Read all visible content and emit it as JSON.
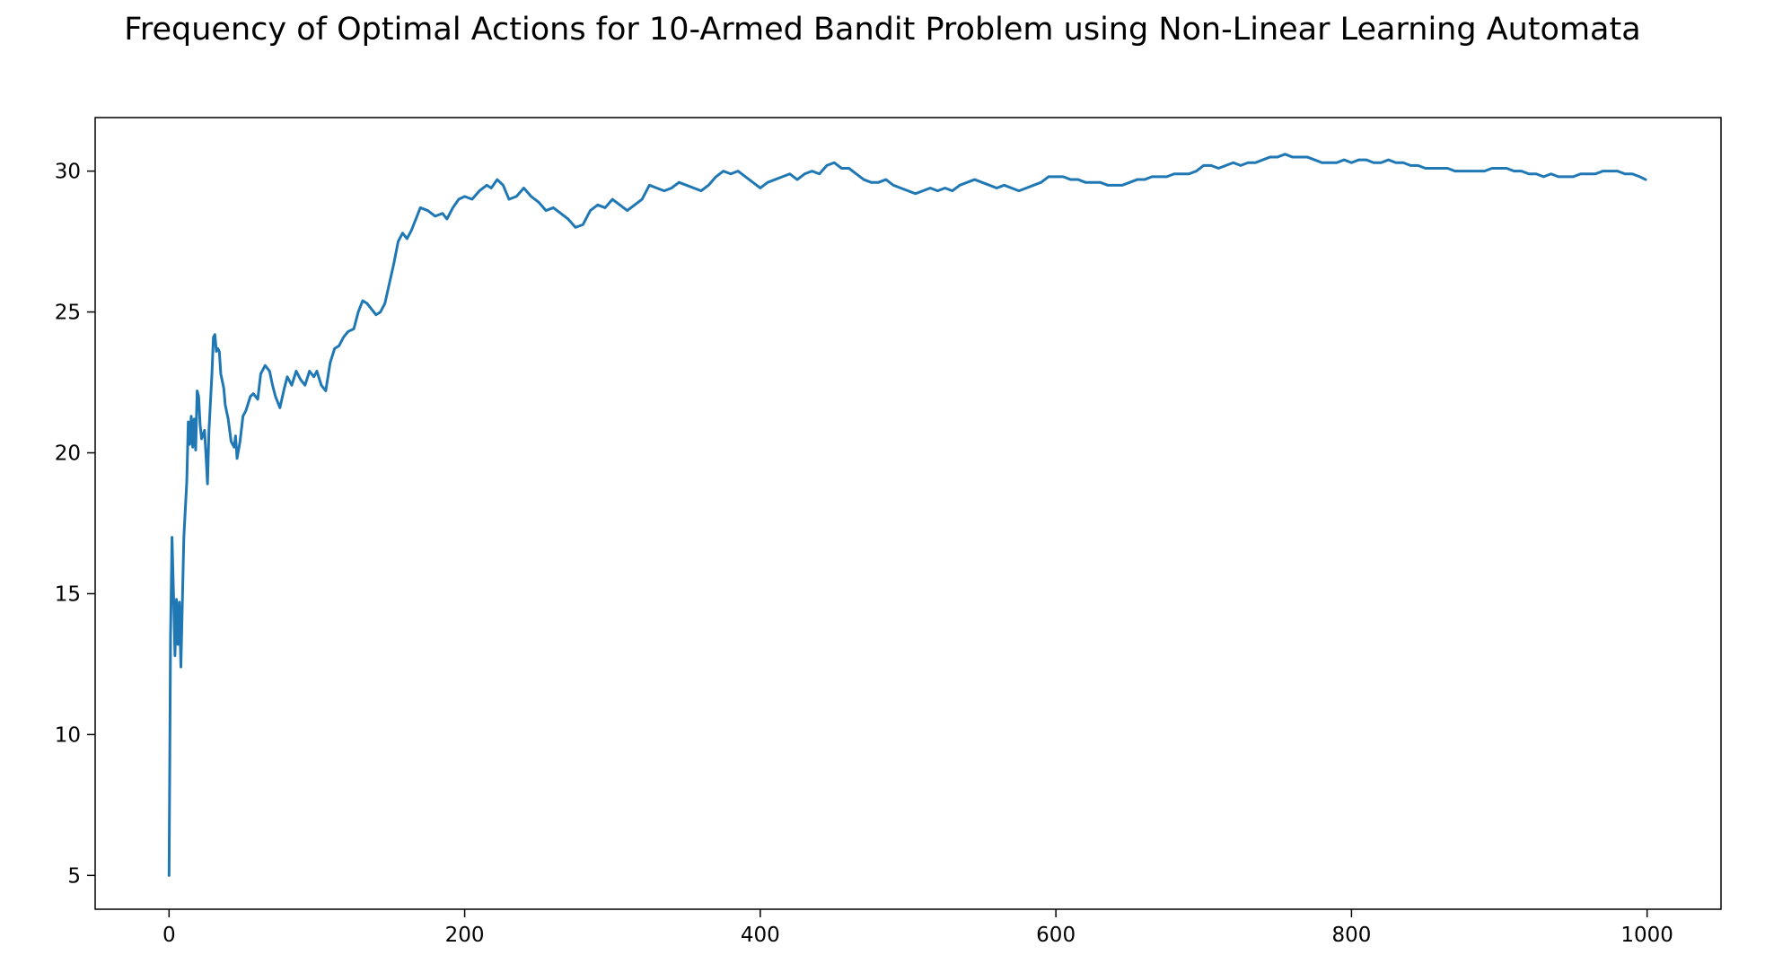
{
  "chart_data": {
    "type": "line",
    "title": "Frequency of Optimal Actions for 10-Armed Bandit Problem using Non-Linear Learning Automata",
    "xlabel": "",
    "ylabel": "",
    "xlim": [
      -50,
      1050
    ],
    "ylim": [
      3.8,
      31.9
    ],
    "xticks": [
      0,
      200,
      400,
      600,
      800,
      1000
    ],
    "yticks": [
      5,
      10,
      15,
      20,
      25,
      30
    ],
    "xtick_labels": [
      "0",
      "200",
      "400",
      "600",
      "800",
      "1000"
    ],
    "ytick_labels": [
      "5",
      "10",
      "15",
      "20",
      "25",
      "30"
    ],
    "grid": false,
    "legend": "none",
    "series": [
      {
        "color": "#1f77b4",
        "points": [
          [
            0,
            5.0
          ],
          [
            1,
            13.5
          ],
          [
            2,
            17.0
          ],
          [
            3,
            15.0
          ],
          [
            4,
            12.8
          ],
          [
            5,
            14.8
          ],
          [
            6,
            13.2
          ],
          [
            7,
            14.7
          ],
          [
            8,
            12.4
          ],
          [
            10,
            17.0
          ],
          [
            12,
            19.0
          ],
          [
            13,
            21.1
          ],
          [
            14,
            20.3
          ],
          [
            15,
            21.3
          ],
          [
            16,
            20.2
          ],
          [
            17,
            21.2
          ],
          [
            18,
            20.1
          ],
          [
            19,
            22.2
          ],
          [
            20,
            22.0
          ],
          [
            21,
            21.0
          ],
          [
            22,
            20.5
          ],
          [
            24,
            20.8
          ],
          [
            25,
            19.9
          ],
          [
            26,
            18.9
          ],
          [
            27,
            20.8
          ],
          [
            28,
            21.8
          ],
          [
            29,
            22.8
          ],
          [
            30,
            24.1
          ],
          [
            31,
            24.2
          ],
          [
            32,
            23.6
          ],
          [
            33,
            23.7
          ],
          [
            34,
            23.6
          ],
          [
            35,
            22.8
          ],
          [
            37,
            22.3
          ],
          [
            38,
            21.7
          ],
          [
            40,
            21.2
          ],
          [
            42,
            20.4
          ],
          [
            44,
            20.2
          ],
          [
            45,
            20.6
          ],
          [
            46,
            19.8
          ],
          [
            48,
            20.4
          ],
          [
            50,
            21.3
          ],
          [
            52,
            21.5
          ],
          [
            55,
            22.0
          ],
          [
            57,
            22.1
          ],
          [
            60,
            21.9
          ],
          [
            62,
            22.8
          ],
          [
            65,
            23.1
          ],
          [
            68,
            22.9
          ],
          [
            70,
            22.4
          ],
          [
            72,
            22.0
          ],
          [
            75,
            21.6
          ],
          [
            78,
            22.3
          ],
          [
            80,
            22.7
          ],
          [
            83,
            22.4
          ],
          [
            86,
            22.9
          ],
          [
            89,
            22.6
          ],
          [
            92,
            22.4
          ],
          [
            95,
            22.9
          ],
          [
            98,
            22.7
          ],
          [
            100,
            22.9
          ],
          [
            103,
            22.4
          ],
          [
            106,
            22.2
          ],
          [
            109,
            23.2
          ],
          [
            112,
            23.7
          ],
          [
            115,
            23.8
          ],
          [
            118,
            24.1
          ],
          [
            121,
            24.3
          ],
          [
            125,
            24.4
          ],
          [
            128,
            25.0
          ],
          [
            131,
            25.4
          ],
          [
            134,
            25.3
          ],
          [
            137,
            25.1
          ],
          [
            140,
            24.9
          ],
          [
            143,
            25.0
          ],
          [
            146,
            25.3
          ],
          [
            149,
            26.0
          ],
          [
            152,
            26.7
          ],
          [
            155,
            27.5
          ],
          [
            158,
            27.8
          ],
          [
            161,
            27.6
          ],
          [
            164,
            27.9
          ],
          [
            167,
            28.3
          ],
          [
            170,
            28.7
          ],
          [
            175,
            28.6
          ],
          [
            180,
            28.4
          ],
          [
            185,
            28.5
          ],
          [
            188,
            28.3
          ],
          [
            192,
            28.7
          ],
          [
            196,
            29.0
          ],
          [
            200,
            29.1
          ],
          [
            205,
            29.0
          ],
          [
            210,
            29.3
          ],
          [
            215,
            29.5
          ],
          [
            218,
            29.4
          ],
          [
            222,
            29.7
          ],
          [
            226,
            29.5
          ],
          [
            230,
            29.0
          ],
          [
            235,
            29.1
          ],
          [
            240,
            29.4
          ],
          [
            245,
            29.1
          ],
          [
            250,
            28.9
          ],
          [
            255,
            28.6
          ],
          [
            260,
            28.7
          ],
          [
            265,
            28.5
          ],
          [
            270,
            28.3
          ],
          [
            275,
            28.0
          ],
          [
            280,
            28.1
          ],
          [
            285,
            28.6
          ],
          [
            290,
            28.8
          ],
          [
            295,
            28.7
          ],
          [
            300,
            29.0
          ],
          [
            305,
            28.8
          ],
          [
            310,
            28.6
          ],
          [
            315,
            28.8
          ],
          [
            320,
            29.0
          ],
          [
            325,
            29.5
          ],
          [
            330,
            29.4
          ],
          [
            335,
            29.3
          ],
          [
            340,
            29.4
          ],
          [
            345,
            29.6
          ],
          [
            350,
            29.5
          ],
          [
            355,
            29.4
          ],
          [
            360,
            29.3
          ],
          [
            365,
            29.5
          ],
          [
            370,
            29.8
          ],
          [
            375,
            30.0
          ],
          [
            380,
            29.9
          ],
          [
            385,
            30.0
          ],
          [
            390,
            29.8
          ],
          [
            395,
            29.6
          ],
          [
            400,
            29.4
          ],
          [
            405,
            29.6
          ],
          [
            410,
            29.7
          ],
          [
            415,
            29.8
          ],
          [
            420,
            29.9
          ],
          [
            425,
            29.7
          ],
          [
            430,
            29.9
          ],
          [
            435,
            30.0
          ],
          [
            440,
            29.9
          ],
          [
            445,
            30.2
          ],
          [
            450,
            30.3
          ],
          [
            455,
            30.1
          ],
          [
            460,
            30.1
          ],
          [
            465,
            29.9
          ],
          [
            470,
            29.7
          ],
          [
            475,
            29.6
          ],
          [
            480,
            29.6
          ],
          [
            485,
            29.7
          ],
          [
            490,
            29.5
          ],
          [
            495,
            29.4
          ],
          [
            500,
            29.3
          ],
          [
            505,
            29.2
          ],
          [
            510,
            29.3
          ],
          [
            515,
            29.4
          ],
          [
            520,
            29.3
          ],
          [
            525,
            29.4
          ],
          [
            530,
            29.3
          ],
          [
            535,
            29.5
          ],
          [
            540,
            29.6
          ],
          [
            545,
            29.7
          ],
          [
            550,
            29.6
          ],
          [
            555,
            29.5
          ],
          [
            560,
            29.4
          ],
          [
            565,
            29.5
          ],
          [
            570,
            29.4
          ],
          [
            575,
            29.3
          ],
          [
            580,
            29.4
          ],
          [
            585,
            29.5
          ],
          [
            590,
            29.6
          ],
          [
            595,
            29.8
          ],
          [
            600,
            29.8
          ],
          [
            605,
            29.8
          ],
          [
            610,
            29.7
          ],
          [
            615,
            29.7
          ],
          [
            620,
            29.6
          ],
          [
            625,
            29.6
          ],
          [
            630,
            29.6
          ],
          [
            635,
            29.5
          ],
          [
            640,
            29.5
          ],
          [
            645,
            29.5
          ],
          [
            650,
            29.6
          ],
          [
            655,
            29.7
          ],
          [
            660,
            29.7
          ],
          [
            665,
            29.8
          ],
          [
            670,
            29.8
          ],
          [
            675,
            29.8
          ],
          [
            680,
            29.9
          ],
          [
            685,
            29.9
          ],
          [
            690,
            29.9
          ],
          [
            695,
            30.0
          ],
          [
            700,
            30.2
          ],
          [
            705,
            30.2
          ],
          [
            710,
            30.1
          ],
          [
            715,
            30.2
          ],
          [
            720,
            30.3
          ],
          [
            725,
            30.2
          ],
          [
            730,
            30.3
          ],
          [
            735,
            30.3
          ],
          [
            740,
            30.4
          ],
          [
            745,
            30.5
          ],
          [
            750,
            30.5
          ],
          [
            755,
            30.6
          ],
          [
            760,
            30.5
          ],
          [
            765,
            30.5
          ],
          [
            770,
            30.5
          ],
          [
            775,
            30.4
          ],
          [
            780,
            30.3
          ],
          [
            785,
            30.3
          ],
          [
            790,
            30.3
          ],
          [
            795,
            30.4
          ],
          [
            800,
            30.3
          ],
          [
            805,
            30.4
          ],
          [
            810,
            30.4
          ],
          [
            815,
            30.3
          ],
          [
            820,
            30.3
          ],
          [
            825,
            30.4
          ],
          [
            830,
            30.3
          ],
          [
            835,
            30.3
          ],
          [
            840,
            30.2
          ],
          [
            845,
            30.2
          ],
          [
            850,
            30.1
          ],
          [
            855,
            30.1
          ],
          [
            860,
            30.1
          ],
          [
            865,
            30.1
          ],
          [
            870,
            30.0
          ],
          [
            875,
            30.0
          ],
          [
            880,
            30.0
          ],
          [
            885,
            30.0
          ],
          [
            890,
            30.0
          ],
          [
            895,
            30.1
          ],
          [
            900,
            30.1
          ],
          [
            905,
            30.1
          ],
          [
            910,
            30.0
          ],
          [
            915,
            30.0
          ],
          [
            920,
            29.9
          ],
          [
            925,
            29.9
          ],
          [
            930,
            29.8
          ],
          [
            935,
            29.9
          ],
          [
            940,
            29.8
          ],
          [
            945,
            29.8
          ],
          [
            950,
            29.8
          ],
          [
            955,
            29.9
          ],
          [
            960,
            29.9
          ],
          [
            965,
            29.9
          ],
          [
            970,
            30.0
          ],
          [
            975,
            30.0
          ],
          [
            980,
            30.0
          ],
          [
            985,
            29.9
          ],
          [
            990,
            29.9
          ],
          [
            995,
            29.8
          ],
          [
            999,
            29.7
          ]
        ]
      }
    ]
  }
}
